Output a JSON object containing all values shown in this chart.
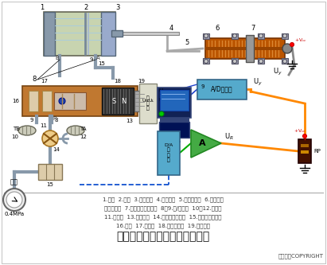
{
  "title": "直滑式电位器控制气缸活塞行程",
  "subtitle": "东方仿真COPYRIGHT",
  "caption_lines": [
    "1.气缸  2.活塞  3.直线轴承  4.气缸推杆  5.电位器滑杆  6.直滑式电",
    "位器传感器  7.滑动触点（电刷）  8、9.进/出气孔  10、12.消音器",
    "11.进气孔  13.电磁线圈  14.电动比例调节阀  15.气源处理三联件",
    "16.阀心  17.阀心杆  18.电磁阀壳体  19.永久磁铁"
  ],
  "bg_color": "#ffffff",
  "cyl_color": "#b8c8a0",
  "cyl_end_color": "#888888",
  "valve_color": "#c07830",
  "sensor_color": "#cc6600",
  "ad_color": "#66aacc",
  "amp_color": "#44aa44",
  "rp_color": "#552200",
  "orange": "#ff8800",
  "blue_wire": "#0044cc",
  "pipe_color": "#8899aa"
}
